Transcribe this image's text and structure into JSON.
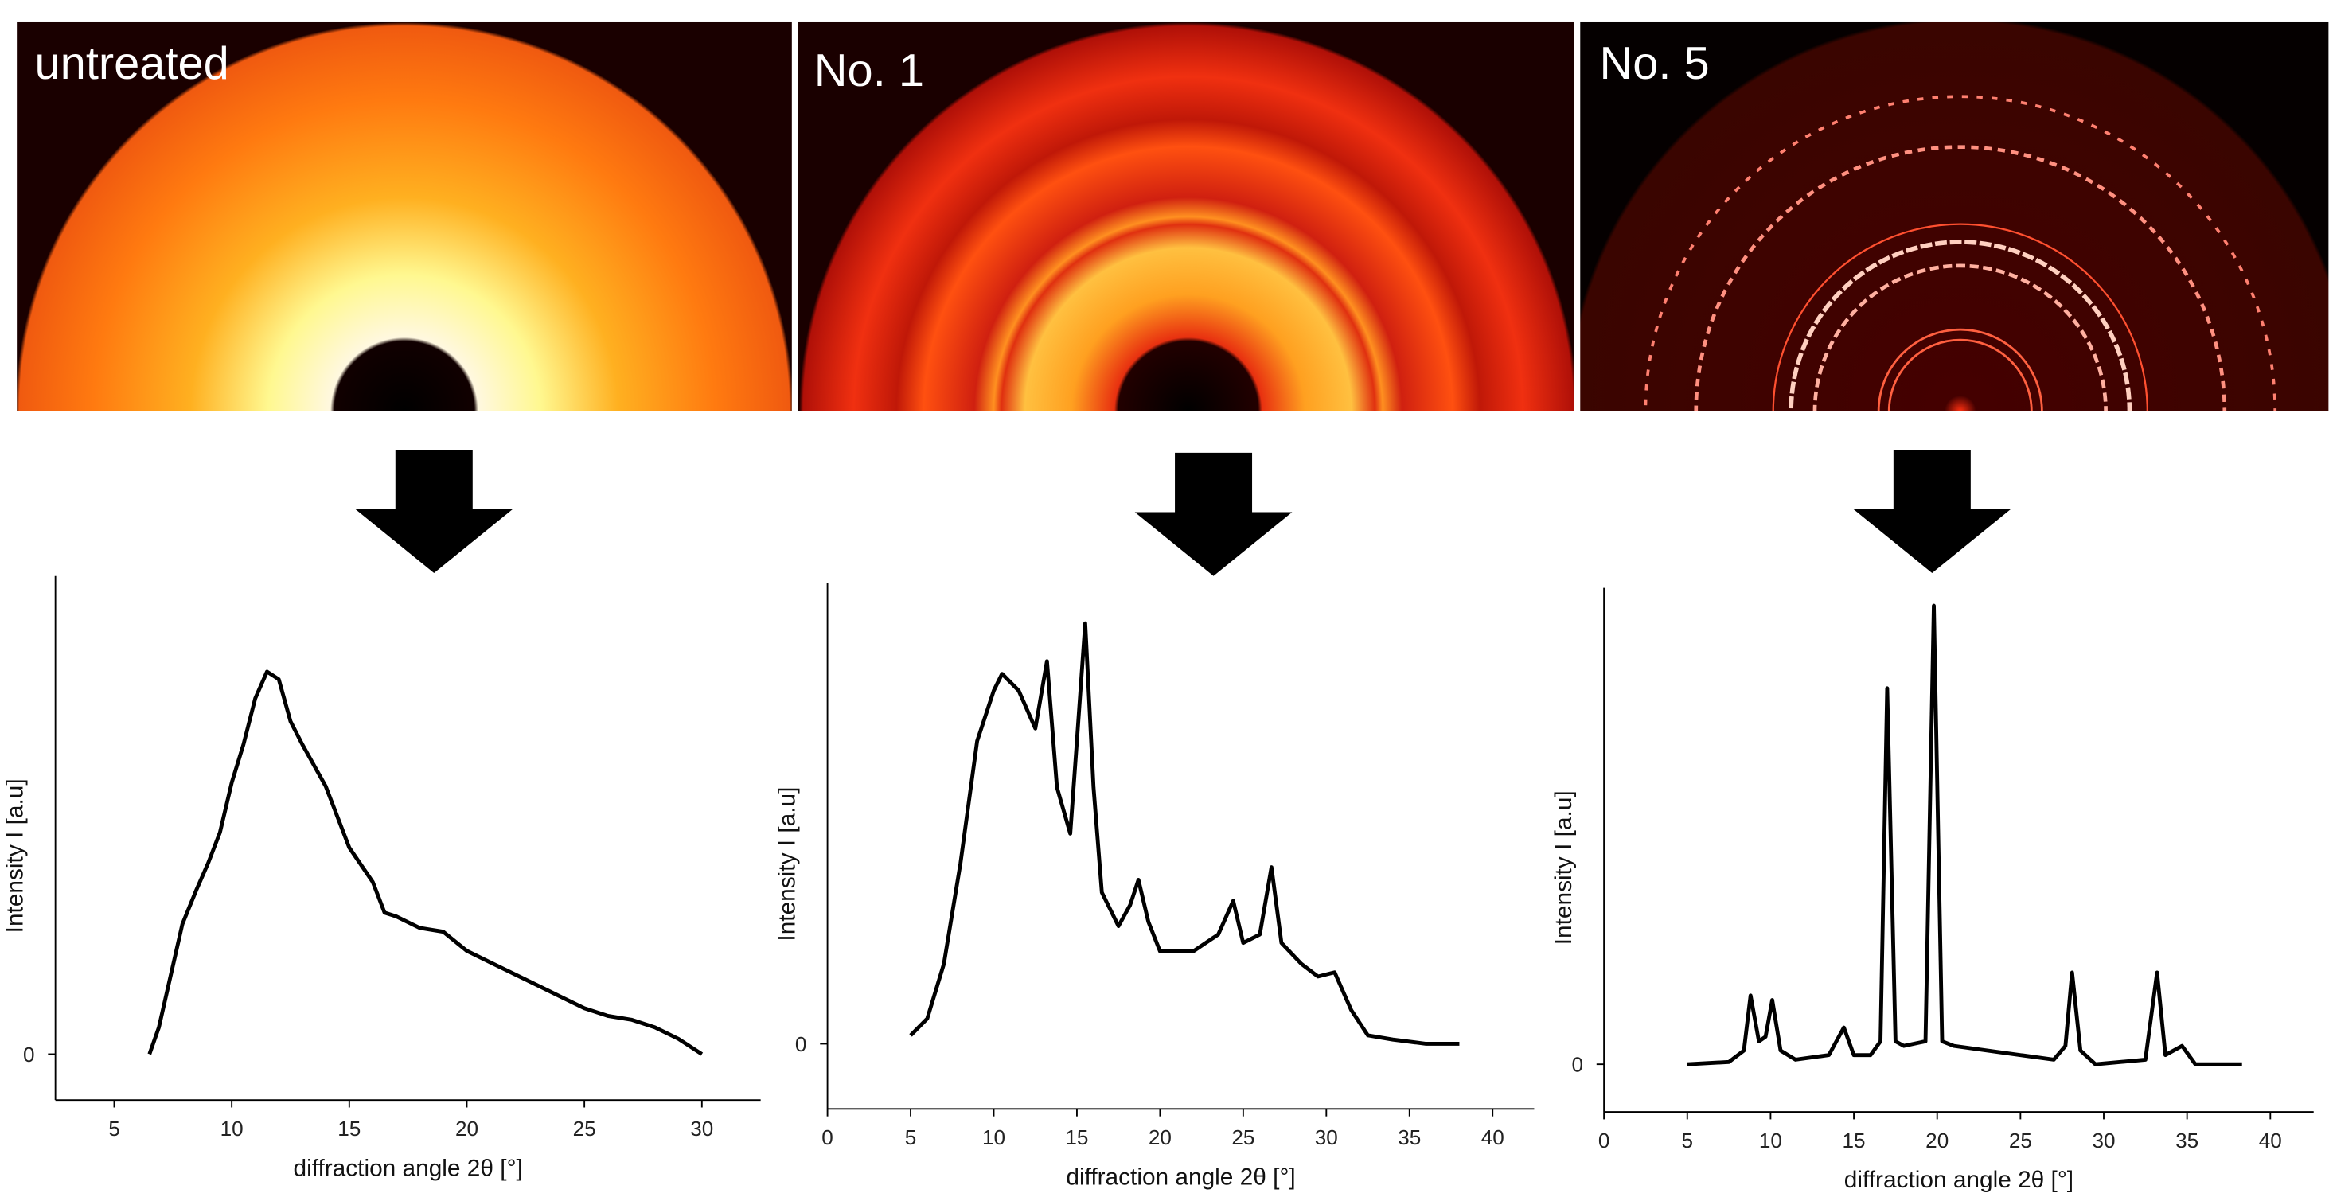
{
  "images": [
    {
      "label": "untreated"
    },
    {
      "label": "No. 1"
    },
    {
      "label": "No. 5"
    }
  ],
  "chart_data": [
    {
      "type": "line",
      "xlabel": "diffraction angle 2θ [°]",
      "ylabel": "Intensity I [a.u]",
      "color": "#000000",
      "xlim": [
        2.5,
        32.5
      ],
      "xticks": [
        5,
        10,
        15,
        20,
        25,
        30
      ],
      "ylim": [
        -12,
        125
      ],
      "yticks": [
        0
      ],
      "x": [
        6.5,
        6.9,
        7.9,
        8.5,
        9.0,
        9.5,
        10.0,
        10.5,
        11.0,
        11.5,
        12.0,
        12.5,
        13.0,
        14.0,
        15.0,
        16.0,
        16.5,
        17.0,
        18.0,
        19.0,
        20.0,
        21.0,
        22.0,
        23.0,
        24.0,
        25.0,
        26.0,
        27.0,
        28.0,
        29.0,
        30.0
      ],
      "values": [
        0,
        7,
        34,
        43,
        50,
        58,
        71,
        81,
        93,
        100,
        98,
        87,
        81,
        70,
        54,
        45,
        37,
        36,
        33,
        32,
        27,
        24,
        21,
        18,
        15,
        12,
        10,
        9,
        7,
        4,
        0
      ]
    },
    {
      "type": "line",
      "xlabel": "diffraction angle 2θ [°]",
      "ylabel": "Intensity I [a.u]",
      "color": "#000000",
      "xlim": [
        0,
        42.5
      ],
      "xticks": [
        0,
        5,
        10,
        15,
        20,
        25,
        30,
        35,
        40
      ],
      "ylim": [
        -15.5,
        109.5
      ],
      "yticks": [
        0
      ],
      "x": [
        5.0,
        6.0,
        7.0,
        8.0,
        9.0,
        10.0,
        10.5,
        11.5,
        12.5,
        13.2,
        13.8,
        14.6,
        15.0,
        15.5,
        16.0,
        16.5,
        17.5,
        18.2,
        18.7,
        19.3,
        20.0,
        22.0,
        23.5,
        24.4,
        25.0,
        26.0,
        26.7,
        27.3,
        28.5,
        29.5,
        30.5,
        31.5,
        32.5,
        34.0,
        36.0,
        38.0
      ],
      "values": [
        2,
        6,
        19,
        43,
        72,
        84,
        88,
        84,
        75,
        91,
        61,
        50,
        72,
        100,
        61,
        36,
        28,
        33,
        39,
        29,
        22,
        22,
        26,
        34,
        24,
        26,
        42,
        24,
        19,
        16,
        17,
        8,
        2,
        1,
        0,
        0
      ]
    },
    {
      "type": "line",
      "xlabel": "diffraction angle 2θ [°]",
      "ylabel": "Intensity I [a.u]",
      "color": "#000000",
      "xlim": [
        0,
        42.6
      ],
      "xticks": [
        0,
        5,
        10,
        15,
        20,
        25,
        30,
        35,
        40
      ],
      "ylim": [
        -10.4,
        103.9
      ],
      "yticks": [
        0
      ],
      "x": [
        5.0,
        7.5,
        8.4,
        8.8,
        9.3,
        9.7,
        10.1,
        10.6,
        11.5,
        13.5,
        14.4,
        15.0,
        16.0,
        16.6,
        17.0,
        17.5,
        18.0,
        19.3,
        19.8,
        20.3,
        21.0,
        27.0,
        27.7,
        28.1,
        28.6,
        29.5,
        32.5,
        33.2,
        33.7,
        34.7,
        35.5,
        38.3
      ],
      "values": [
        0,
        0.5,
        3,
        15,
        5,
        6,
        14,
        3,
        1,
        2,
        8,
        2,
        2,
        5,
        82,
        5,
        4,
        5,
        100,
        5,
        4,
        1,
        4,
        20,
        3,
        0,
        1,
        20,
        2,
        4,
        0,
        0
      ]
    }
  ]
}
